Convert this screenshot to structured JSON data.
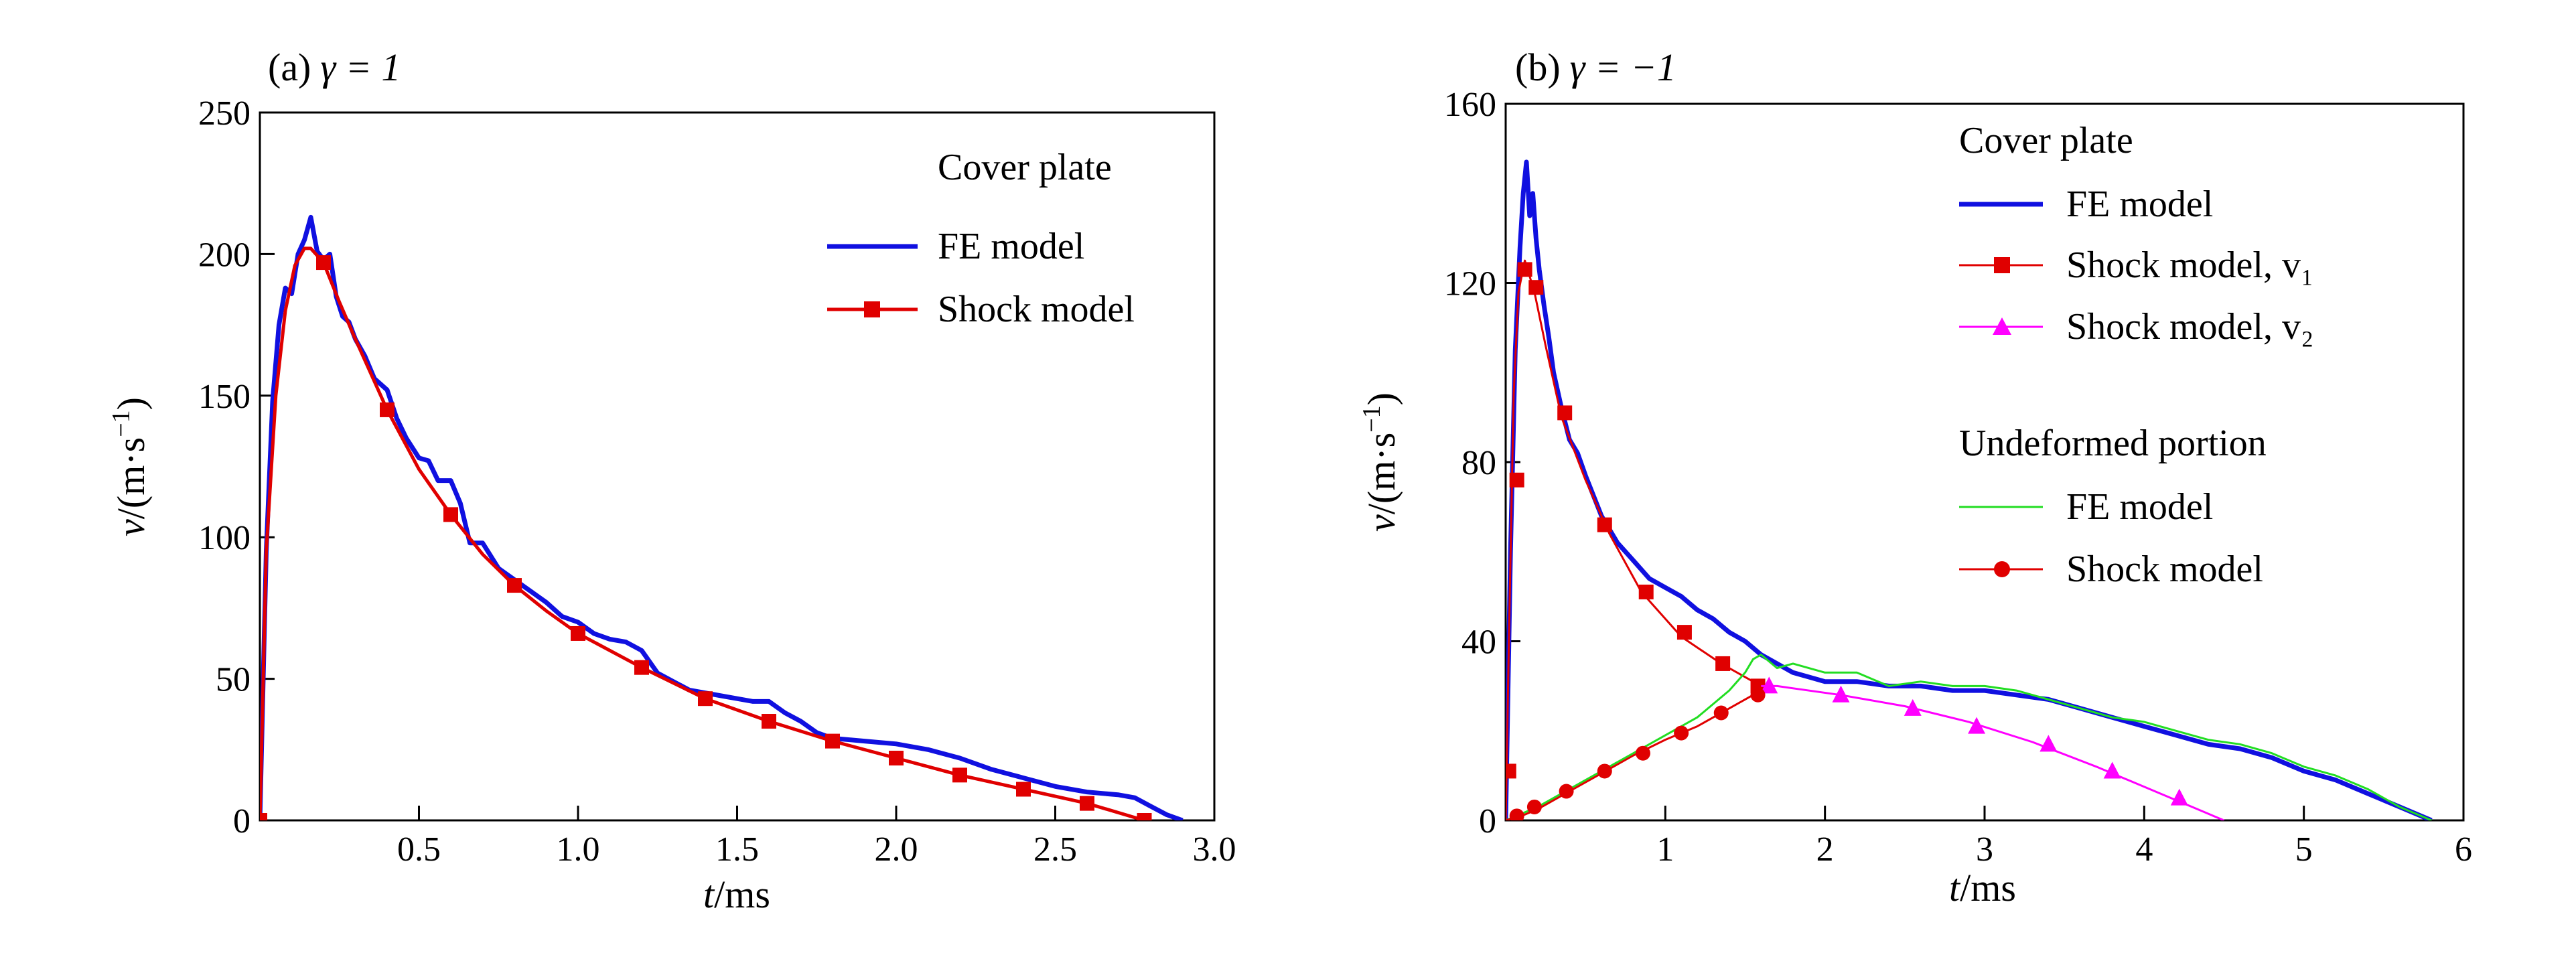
{
  "chart_data": [
    {
      "type": "line",
      "panel_label": "(a)",
      "title_param": "γ = 1",
      "xlabel": "t/ms",
      "ylabel": "v/(m·s⁻¹)",
      "xlim": [
        0,
        3.0
      ],
      "ylim": [
        0,
        250
      ],
      "x_ticks": [
        0.5,
        1.0,
        1.5,
        2.0,
        2.5,
        3.0
      ],
      "x_tick_labels": [
        "0.5",
        "1.0",
        "1.5",
        "2.0",
        "2.5",
        "3.0"
      ],
      "y_ticks": [
        0,
        50,
        100,
        150,
        200,
        250
      ],
      "y_tick_labels": [
        "0",
        "50",
        "100",
        "150",
        "200",
        "250"
      ],
      "legend": {
        "heading": "Cover plate",
        "placement": "top-right"
      },
      "grid": false,
      "series": [
        {
          "name": "FE model",
          "color": "#1010e0",
          "marker": "none",
          "x": [
            0.0,
            0.02,
            0.04,
            0.06,
            0.08,
            0.1,
            0.12,
            0.14,
            0.16,
            0.18,
            0.2,
            0.22,
            0.24,
            0.26,
            0.28,
            0.3,
            0.33,
            0.36,
            0.4,
            0.43,
            0.46,
            0.5,
            0.53,
            0.56,
            0.6,
            0.63,
            0.66,
            0.7,
            0.75,
            0.8,
            0.85,
            0.9,
            0.95,
            1.0,
            1.05,
            1.1,
            1.15,
            1.2,
            1.25,
            1.3,
            1.35,
            1.4,
            1.45,
            1.5,
            1.55,
            1.6,
            1.65,
            1.7,
            1.75,
            1.8,
            1.9,
            2.0,
            2.1,
            2.2,
            2.3,
            2.4,
            2.5,
            2.6,
            2.7,
            2.75,
            2.8,
            2.85,
            2.9
          ],
          "y": [
            0,
            95,
            148,
            175,
            188,
            186,
            200,
            205,
            213,
            201,
            198,
            200,
            185,
            178,
            176,
            170,
            164,
            156,
            152,
            142,
            135,
            128,
            127,
            120,
            120,
            112,
            98,
            98,
            89,
            85,
            81,
            77,
            72,
            70,
            66,
            64,
            63,
            60,
            52,
            49,
            46,
            45,
            44,
            43,
            42,
            42,
            38,
            35,
            31,
            29,
            28,
            27,
            25,
            22,
            18,
            15,
            12,
            10,
            9,
            8,
            5,
            2,
            0
          ]
        },
        {
          "name": "Shock model",
          "color": "#e00000",
          "marker": "square",
          "x": [
            0.0,
            0.02,
            0.05,
            0.08,
            0.11,
            0.14,
            0.16,
            0.2,
            0.25,
            0.3,
            0.4,
            0.5,
            0.6,
            0.7,
            0.8,
            0.9,
            1.0,
            1.2,
            1.4,
            1.6,
            1.8,
            2.0,
            2.2,
            2.4,
            2.6,
            2.78
          ],
          "y": [
            0,
            95,
            150,
            180,
            196,
            202,
            202,
            197,
            183,
            170,
            145,
            124,
            108,
            94,
            83,
            74,
            66,
            54,
            43,
            35,
            28,
            22,
            16,
            11,
            6,
            0
          ],
          "marker_x": [
            0.0,
            0.2,
            0.4,
            0.6,
            0.8,
            1.0,
            1.2,
            1.4,
            1.6,
            1.8,
            2.0,
            2.2,
            2.4,
            2.6,
            2.78
          ],
          "marker_y": [
            0,
            197,
            145,
            108,
            83,
            66,
            54,
            43,
            35,
            28,
            22,
            16,
            11,
            6,
            0
          ]
        }
      ]
    },
    {
      "type": "line",
      "panel_label": "(b)",
      "title_param": "γ = −1",
      "xlabel": "t/ms",
      "ylabel": "v/(m·s⁻¹)",
      "xlim": [
        0,
        6
      ],
      "ylim": [
        0,
        160
      ],
      "x_ticks": [
        1,
        2,
        3,
        4,
        5,
        6
      ],
      "x_tick_labels": [
        "1",
        "2",
        "3",
        "4",
        "5",
        "6"
      ],
      "y_ticks": [
        0,
        40,
        80,
        120,
        160
      ],
      "y_tick_labels": [
        "0",
        "40",
        "80",
        "120",
        "160"
      ],
      "legend": {
        "placement": "top-right",
        "groups": [
          {
            "heading": "Cover plate",
            "entries": [
              "FE model",
              "Shock model, v₁",
              "Shock model, v₂"
            ]
          },
          {
            "heading": "Undeformed portion",
            "entries": [
              "FE model",
              "Shock model"
            ]
          }
        ]
      },
      "grid": false,
      "series": [
        {
          "name": "FE model",
          "group": "Cover plate",
          "color": "#1010e0",
          "marker": "none",
          "x": [
            0.0,
            0.03,
            0.06,
            0.09,
            0.11,
            0.13,
            0.15,
            0.17,
            0.19,
            0.21,
            0.24,
            0.27,
            0.3,
            0.35,
            0.4,
            0.45,
            0.5,
            0.6,
            0.7,
            0.8,
            0.9,
            1.0,
            1.1,
            1.2,
            1.3,
            1.4,
            1.5,
            1.6,
            1.8,
            2.0,
            2.2,
            2.4,
            2.6,
            2.8,
            3.0,
            3.2,
            3.4,
            3.6,
            3.8,
            4.0,
            4.2,
            4.4,
            4.6,
            4.8,
            5.0,
            5.2,
            5.4,
            5.6,
            5.8
          ],
          "y": [
            0,
            60,
            105,
            128,
            140,
            147,
            135,
            140,
            130,
            123,
            115,
            108,
            100,
            92,
            85,
            82,
            77,
            68,
            62,
            58,
            54,
            52,
            50,
            47,
            45,
            42,
            40,
            37,
            33,
            31,
            31,
            30,
            30,
            29,
            29,
            28,
            27,
            25,
            23,
            21,
            19,
            17,
            16,
            14,
            11,
            9,
            6,
            3,
            0
          ]
        },
        {
          "name": "Shock model, v₁",
          "group": "Cover plate",
          "color": "#e00000",
          "marker": "square",
          "x": [
            0.0,
            0.02,
            0.05,
            0.08,
            0.12,
            0.18,
            0.25,
            0.35,
            0.5,
            0.65,
            0.85,
            1.1,
            1.35,
            1.6
          ],
          "y": [
            0,
            40,
            95,
            118,
            125,
            118,
            106,
            90,
            76,
            64,
            51,
            41,
            35,
            30
          ],
          "marker_x": [
            0.02,
            0.07,
            0.12,
            0.19,
            0.37,
            0.62,
            0.88,
            1.12,
            1.36,
            1.58
          ],
          "marker_y": [
            11,
            76,
            123,
            119,
            91,
            66,
            51,
            42,
            35,
            30
          ]
        },
        {
          "name": "Shock model, v₂",
          "group": "Cover plate",
          "color": "#ff00ff",
          "marker": "triangle",
          "x": [
            1.6,
            1.7,
            2.1,
            2.5,
            2.9,
            3.3,
            3.7,
            4.1,
            4.3,
            4.5
          ],
          "y": [
            30,
            30,
            28,
            25.5,
            22,
            17.5,
            12,
            6,
            3,
            0
          ],
          "marker_x": [
            1.65,
            2.1,
            2.55,
            2.95,
            3.4,
            3.8,
            4.22
          ],
          "marker_y": [
            30,
            28,
            25,
            21,
            17,
            11,
            5
          ]
        },
        {
          "name": "FE model",
          "group": "Undeformed portion",
          "color": "#22dd22",
          "marker": "none",
          "x": [
            0.0,
            0.2,
            0.4,
            0.6,
            0.8,
            1.0,
            1.2,
            1.4,
            1.5,
            1.55,
            1.6,
            1.7,
            1.8,
            2.0,
            2.2,
            2.4,
            2.6,
            2.8,
            3.0,
            3.2,
            3.4,
            3.6,
            3.8,
            4.0,
            4.2,
            4.4,
            4.6,
            4.8,
            5.0,
            5.2,
            5.4,
            5.6,
            5.8
          ],
          "y": [
            0,
            3,
            7,
            11,
            15,
            19,
            23,
            29,
            33,
            36,
            37,
            34,
            35,
            33,
            33,
            30,
            31,
            30,
            30,
            29,
            27,
            25,
            23,
            22,
            20,
            18,
            17,
            15,
            12,
            10,
            7,
            3,
            0
          ]
        },
        {
          "name": "Shock model",
          "group": "Undeformed portion",
          "color": "#e00000",
          "marker": "circle",
          "x": [
            0.0,
            0.1,
            0.2,
            0.3,
            0.4,
            0.6,
            0.8,
            1.0,
            1.2,
            1.4,
            1.6
          ],
          "y": [
            0,
            1,
            2.5,
            4.5,
            6.5,
            10.5,
            14.5,
            18,
            21,
            25,
            29
          ],
          "marker_x": [
            0.07,
            0.18,
            0.38,
            0.62,
            0.86,
            1.1,
            1.35,
            1.58
          ],
          "marker_y": [
            1,
            3,
            6.5,
            11,
            15,
            19.5,
            24,
            28
          ]
        }
      ]
    }
  ]
}
